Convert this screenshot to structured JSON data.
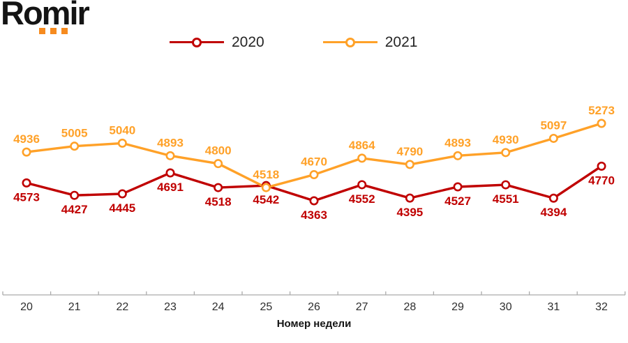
{
  "logo": {
    "text": "Romir"
  },
  "colors": {
    "series_2020": "#C00000",
    "series_2021": "#FFA128",
    "axis": "#ABABAB",
    "logo_dots": "#F68B1F"
  },
  "chart_data": {
    "type": "line",
    "title": "",
    "categories": [
      "20",
      "21",
      "22",
      "23",
      "24",
      "25",
      "26",
      "27",
      "28",
      "29",
      "30",
      "31",
      "32"
    ],
    "series": [
      {
        "name": "2020",
        "color": "#C00000",
        "label_position": "below",
        "values": [
          4573,
          4427,
          4445,
          4691,
          4518,
          4542,
          4363,
          4552,
          4395,
          4527,
          4551,
          4394,
          4770
        ]
      },
      {
        "name": "2021",
        "color": "#FFA128",
        "label_position": "above",
        "values": [
          4936,
          5005,
          5040,
          4893,
          4800,
          4518,
          4670,
          4864,
          4790,
          4893,
          4930,
          5097,
          5273
        ]
      }
    ],
    "xlabel": "Номер недели",
    "ylabel": "",
    "ylim": [
      4100,
      5450
    ],
    "grid": false,
    "legend_position": "top",
    "data_labels": true
  }
}
